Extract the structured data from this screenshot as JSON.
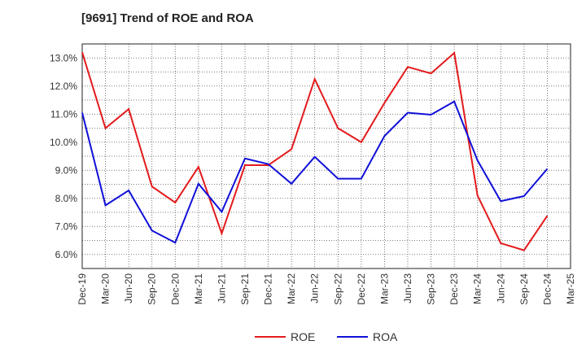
{
  "chart_data": {
    "type": "line",
    "title": "[9691]  Trend of ROE and ROA",
    "xlabel": "",
    "ylabel": "",
    "x": [
      "Dec-19",
      "Mar-20",
      "Jun-20",
      "Sep-20",
      "Dec-20",
      "Mar-21",
      "Jun-21",
      "Sep-21",
      "Dec-21",
      "Mar-22",
      "Jun-22",
      "Sep-22",
      "Dec-22",
      "Mar-23",
      "Jun-23",
      "Sep-23",
      "Dec-23",
      "Mar-24",
      "Jun-24",
      "Sep-24",
      "Dec-24",
      "Mar-25"
    ],
    "y_ticks": [
      "6.0%",
      "7.0%",
      "8.0%",
      "9.0%",
      "10.0%",
      "11.0%",
      "12.0%",
      "13.0%"
    ],
    "ylim": [
      5.5,
      13.5
    ],
    "grid": true,
    "legend_position": "bottom",
    "series": [
      {
        "name": "ROE",
        "color": "#e31a1c",
        "values": [
          13.2,
          10.5,
          11.18,
          8.42,
          7.85,
          9.12,
          6.75,
          9.18,
          9.18,
          9.75,
          12.25,
          10.5,
          10.0,
          11.4,
          12.68,
          12.45,
          13.18,
          8.1,
          6.4,
          6.15,
          7.38,
          null
        ]
      },
      {
        "name": "ROA",
        "color": "#1010d8",
        "values": [
          11.05,
          7.75,
          8.28,
          6.85,
          6.42,
          8.52,
          7.52,
          9.42,
          9.22,
          8.52,
          9.48,
          8.7,
          8.7,
          10.22,
          11.05,
          10.98,
          11.45,
          9.35,
          7.9,
          8.08,
          9.05,
          null
        ]
      }
    ]
  }
}
